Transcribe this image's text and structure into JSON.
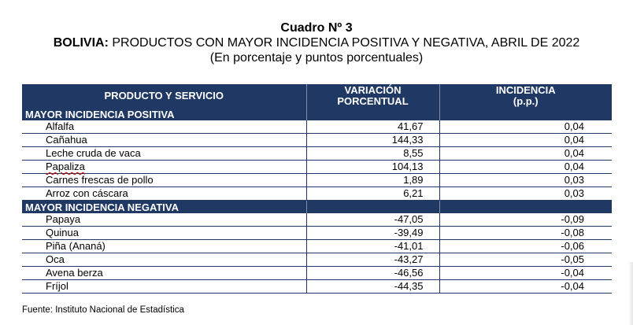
{
  "header": {
    "title": "Cuadro Nº 3",
    "subtitle_bold": "BOLIVIA:",
    "subtitle_rest": " PRODUCTOS CON MAYOR INCIDENCIA POSITIVA Y NEGATIVA, ABRIL DE 2022",
    "units": "(En porcentaje y puntos porcentuales)"
  },
  "table": {
    "columns": {
      "product": "PRODUCTO Y SERVICIO",
      "variation_line1": "VARIACIÓN",
      "variation_line2": "PORCENTUAL",
      "incidence_line1": "INCIDENCIA",
      "incidence_line2": "(p.p.)"
    },
    "sections": [
      {
        "label": "MAYOR INCIDENCIA POSITIVA",
        "rows": [
          {
            "product": "Alfalfa",
            "variation": "41,67",
            "incidence": "0,04"
          },
          {
            "product": "Cañahua",
            "variation": "144,33",
            "incidence": "0,04"
          },
          {
            "product": "Leche cruda de vaca",
            "variation": "8,55",
            "incidence": "0,04"
          },
          {
            "product": "Papaliza",
            "variation": "104,13",
            "incidence": "0,04"
          },
          {
            "product": "Carnes frescas de pollo",
            "variation": "1,89",
            "incidence": "0,03"
          },
          {
            "product": "Arroz con cáscara",
            "variation": "6,21",
            "incidence": "0,03"
          }
        ]
      },
      {
        "label": "MAYOR INCIDENCIA NEGATIVA",
        "rows": [
          {
            "product": "Papaya",
            "variation": "-47,05",
            "incidence": "-0,09"
          },
          {
            "product": "Quinua",
            "variation": "-39,49",
            "incidence": "-0,08"
          },
          {
            "product": "Piña (Ananá)",
            "variation": "-41,01",
            "incidence": "-0,06"
          },
          {
            "product": "Oca",
            "variation": "-43,27",
            "incidence": "-0,05"
          },
          {
            "product": "Avena berza",
            "variation": "-46,56",
            "incidence": "-0,04"
          },
          {
            "product": "Fríjol",
            "variation": "-44,35",
            "incidence": "-0,04"
          }
        ]
      }
    ]
  },
  "footer": {
    "source": "Fuente: Instituto Nacional de Estadística"
  }
}
